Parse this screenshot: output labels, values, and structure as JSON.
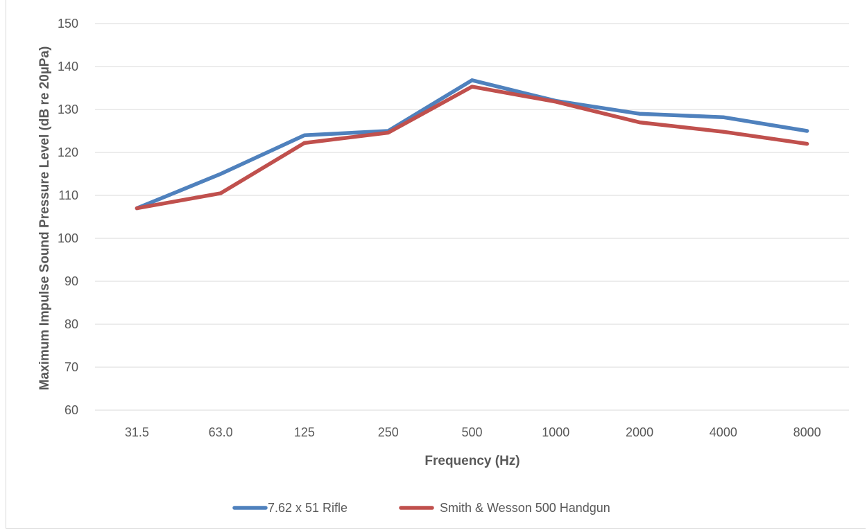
{
  "chart_data": {
    "type": "line",
    "title": "",
    "xlabel": "Frequency (Hz)",
    "ylabel": "Maximum Impulse Sound Pressure Level  (dB re 20µPa)",
    "categories": [
      "31.5",
      "63.0",
      "125",
      "250",
      "500",
      "1000",
      "2000",
      "4000",
      "8000"
    ],
    "ylim": [
      60,
      150
    ],
    "yticks": [
      "60",
      "70",
      "80",
      "90",
      "100",
      "110",
      "120",
      "130",
      "140",
      "150"
    ],
    "grid": "horizontal",
    "legend_position": "bottom",
    "series": [
      {
        "name": "7.62 x 51 Rifle",
        "color": "#4f81bd",
        "values": [
          107,
          115,
          124,
          125,
          136.8,
          132,
          129,
          128.2,
          125
        ]
      },
      {
        "name": "Smith & Wesson 500 Handgun",
        "color": "#c0504d",
        "values": [
          107,
          110.5,
          122.2,
          124.6,
          135.3,
          131.8,
          127,
          124.8,
          122
        ]
      }
    ]
  }
}
